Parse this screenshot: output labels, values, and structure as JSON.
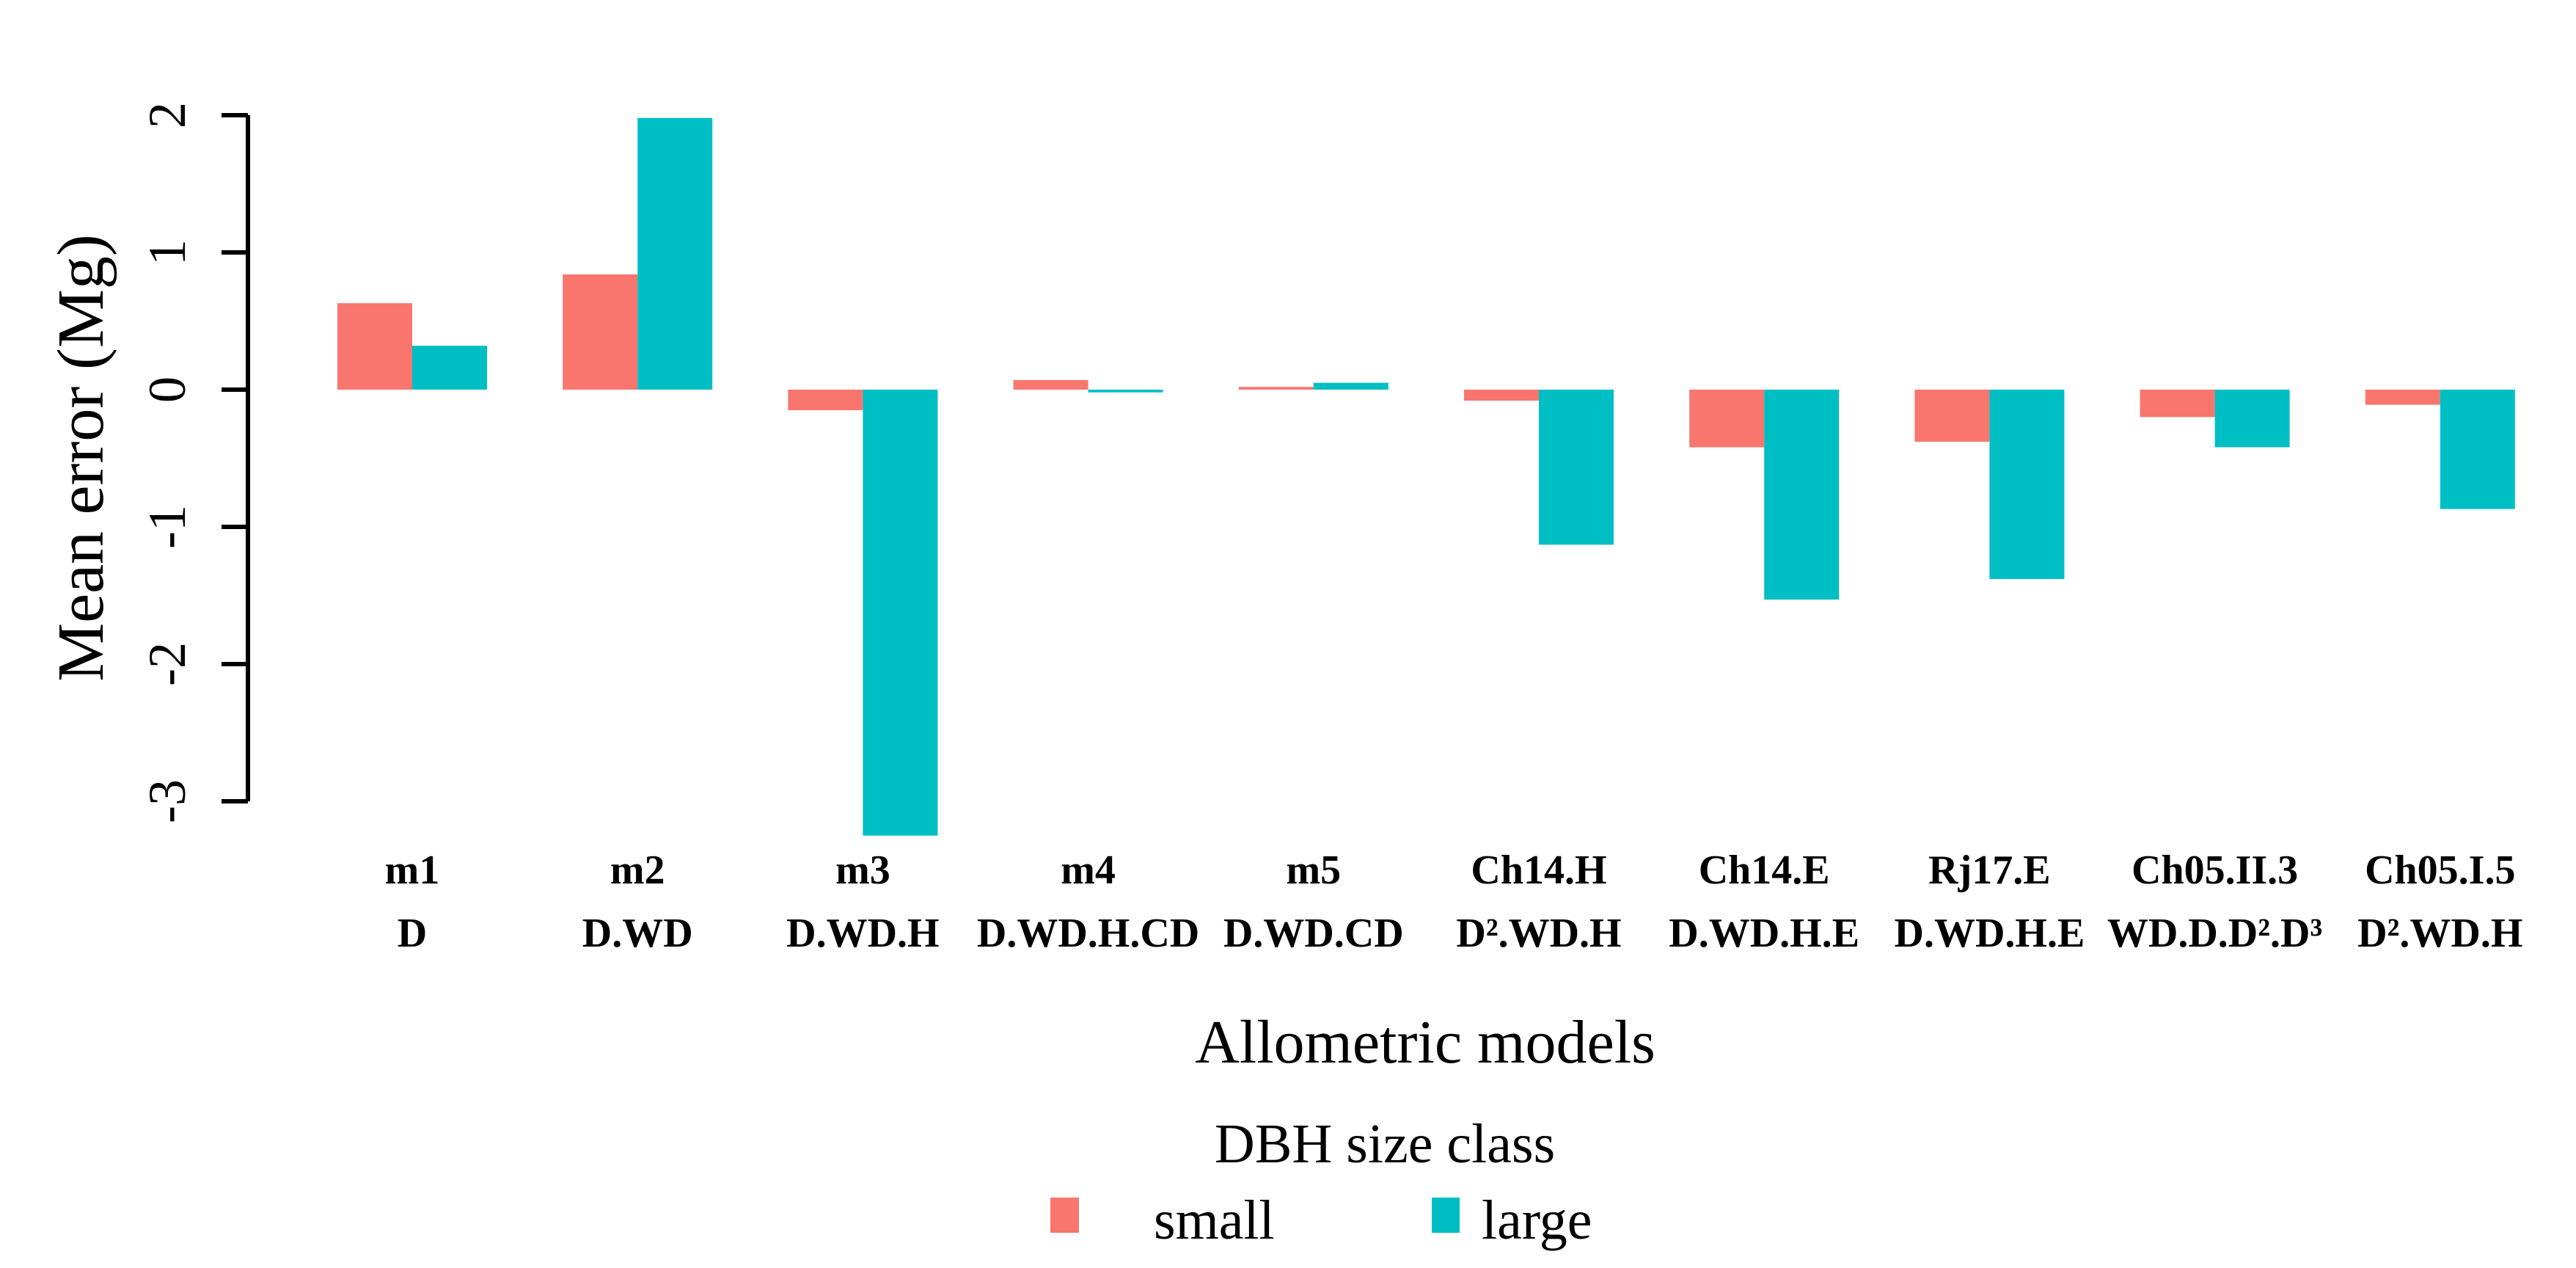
{
  "chart_data": {
    "type": "bar",
    "title": "",
    "xlabel": "Allometric models",
    "ylabel": "Mean error (Mg)",
    "ylim": [
      -3.3,
      2
    ],
    "yticks": [
      2,
      1,
      0,
      -1,
      -2,
      -3
    ],
    "grid": false,
    "legend": {
      "title": "DBH size class",
      "position": "bottom"
    },
    "categories": [
      "m1",
      "m2",
      "m3",
      "m4",
      "m5",
      "Ch14.H",
      "Ch14.E",
      "Rj17.E",
      "Ch05.II.3",
      "Ch05.I.5"
    ],
    "category_sublabels": [
      "D",
      "D.WD",
      "D.WD.H",
      "D.WD.H.CD",
      "D.WD.CD",
      "D².WD.H",
      "D.WD.H.E",
      "D.WD.H.E",
      "WD.D.D².D³",
      "D².WD.H"
    ],
    "series": [
      {
        "name": "small",
        "color": "#F8766D",
        "values": [
          0.63,
          0.84,
          -0.15,
          0.07,
          0.02,
          -0.08,
          -0.42,
          -0.38,
          -0.2,
          -0.11
        ]
      },
      {
        "name": "large",
        "color": "#00BFC4",
        "values": [
          0.32,
          1.98,
          -3.25,
          -0.02,
          0.05,
          -1.13,
          -1.53,
          -1.38,
          -0.42,
          -0.87
        ]
      }
    ]
  }
}
